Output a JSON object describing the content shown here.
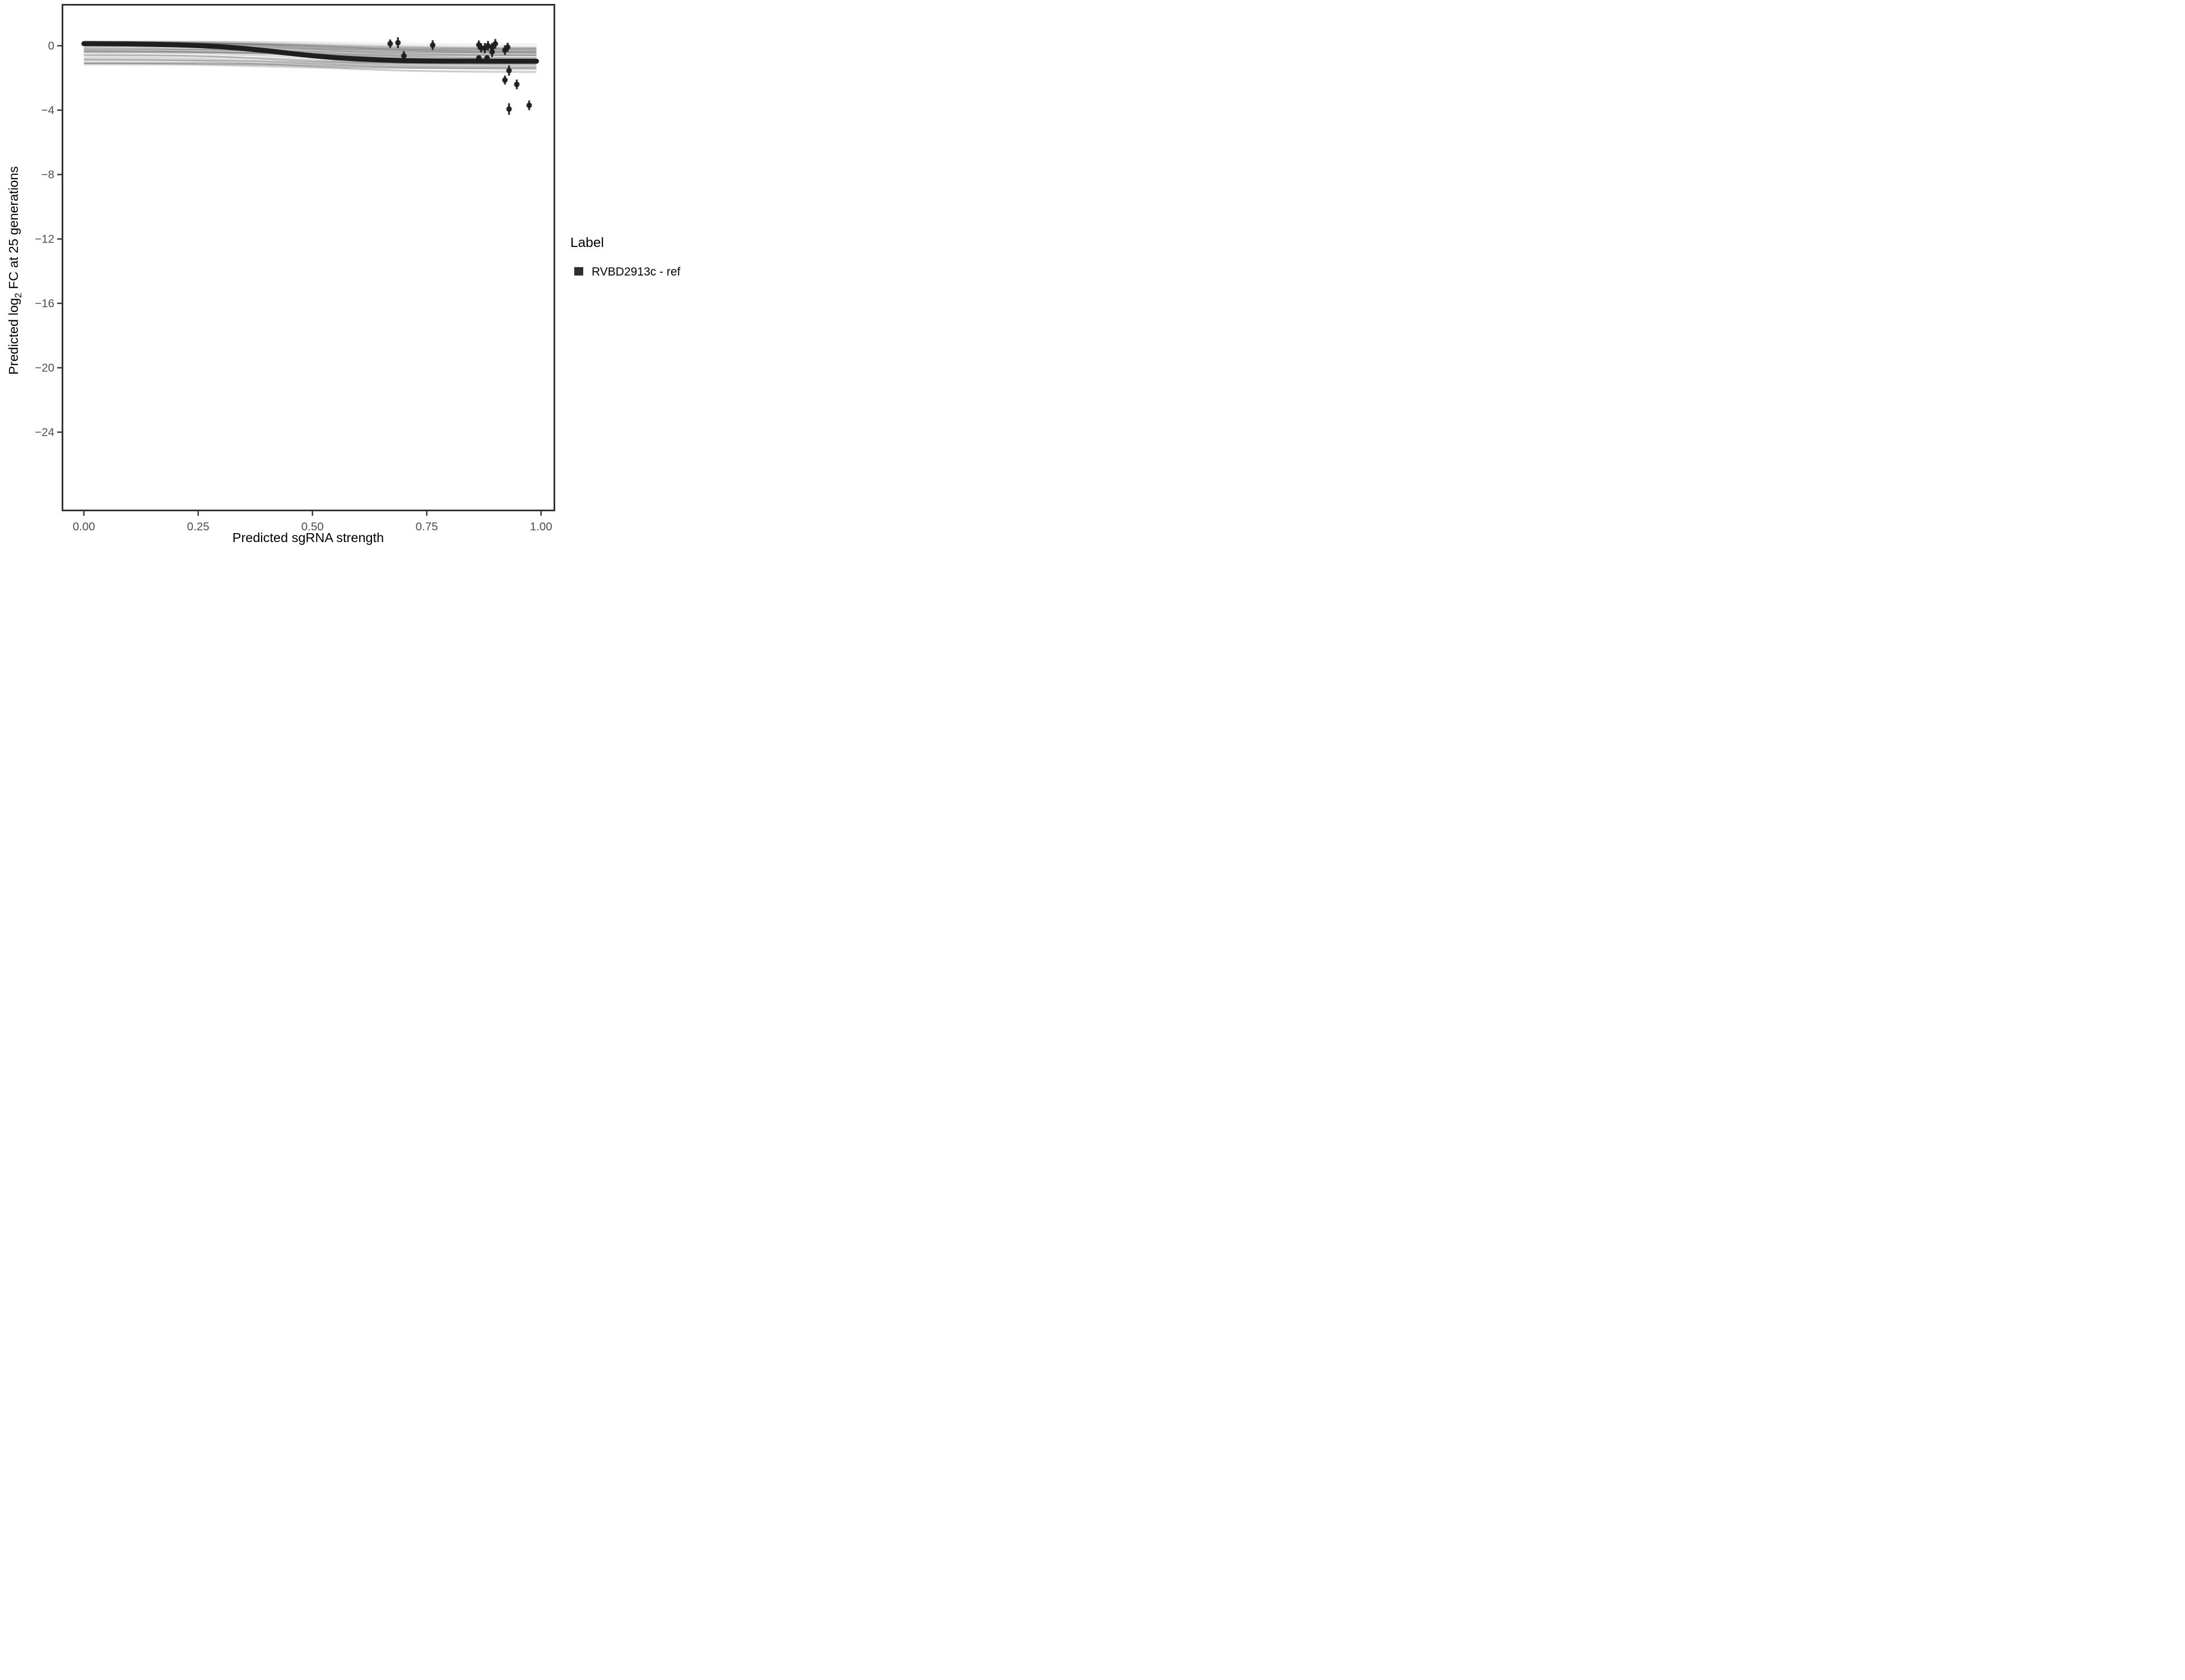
{
  "figure": {
    "x_axis": {
      "title": "Predicted sgRNA strength",
      "tick_labels": [
        "0.00",
        "0.25",
        "0.50",
        "0.75",
        "1.00"
      ],
      "tick_values": [
        0,
        0.25,
        0.5,
        0.75,
        1.0
      ]
    },
    "y_axis": {
      "title_parts": [
        "Predicted  log",
        "2",
        " FC at 25 generations"
      ],
      "tick_labels": [
        "0",
        "−4",
        "−8",
        "−12",
        "−16",
        "−20",
        "−24"
      ],
      "tick_values": [
        0,
        -4,
        -8,
        -12,
        -16,
        -20,
        -24
      ]
    },
    "legend": {
      "title": "Label",
      "items": [
        {
          "label": "RVBD2913c - ref",
          "key_color": "#2e2e2e"
        }
      ]
    },
    "colors": {
      "panel_border": "#333333",
      "tick_text": "#4d4d4d",
      "reference_line": "#1f1f1f",
      "ensemble_grey": "#5a5a5a",
      "point_color": "#1c1c1c",
      "background": "#ffffff"
    }
  },
  "chart_data": {
    "type": "line",
    "title": "",
    "xlabel": "Predicted sgRNA strength",
    "ylabel": "Predicted log2 FC at 25 generations",
    "xlim": [
      -0.047,
      1.047
    ],
    "ylim": [
      -28.9,
      2.45
    ],
    "x_ticks": [
      0,
      0.25,
      0.5,
      0.75,
      1.0
    ],
    "y_ticks": [
      0,
      -4,
      -8,
      -12,
      -16,
      -20,
      -24
    ],
    "grid": false,
    "legend_position": "right",
    "reference_line": {
      "name": "RVBD2913c - ref",
      "color": "#1f1f1f",
      "stroke_px": 9,
      "x": [
        0,
        0.05,
        0.1,
        0.15,
        0.2,
        0.25,
        0.3,
        0.35,
        0.4,
        0.45,
        0.5,
        0.55,
        0.6,
        0.65,
        0.7,
        0.75,
        0.8,
        0.85,
        0.9,
        0.95,
        0.99
      ],
      "y": [
        0.13,
        0.12,
        0.11,
        0.09,
        0.06,
        0.01,
        -0.06,
        -0.17,
        -0.31,
        -0.47,
        -0.62,
        -0.74,
        -0.82,
        -0.88,
        -0.92,
        -0.94,
        -0.95,
        -0.95,
        -0.96,
        -0.96,
        -0.96
      ]
    },
    "ensemble_band": {
      "description": "many semi-transparent grey posterior draw curves forming a band",
      "n_lines": 110,
      "seed": 7,
      "x_range": [
        0,
        0.99
      ],
      "top_at_x0": 0.28,
      "bottom_at_x0": -1.3,
      "top_at_x1": 0.14,
      "bottom_at_x1": -2.1,
      "color": "#5a5a5a"
    },
    "points": {
      "name": "observed guide fitness with error bars",
      "color": "#1c1c1c",
      "marker_radius_px": 5,
      "data": [
        {
          "x": 0.67,
          "y": 0.13,
          "lo": -0.13,
          "hi": 0.39
        },
        {
          "x": 0.687,
          "y": 0.19,
          "lo": -0.15,
          "hi": 0.53
        },
        {
          "x": 0.7,
          "y": -0.63,
          "lo": -0.93,
          "hi": -0.33
        },
        {
          "x": 0.763,
          "y": 0.04,
          "lo": -0.26,
          "hi": 0.34
        },
        {
          "x": 0.864,
          "y": 0.05,
          "lo": -0.23,
          "hi": 0.33
        },
        {
          "x": 0.869,
          "y": -0.13,
          "lo": -0.41,
          "hi": 0.15
        },
        {
          "x": 0.877,
          "y": -0.15,
          "lo": -0.47,
          "hi": 0.17
        },
        {
          "x": 0.884,
          "y": 0.0,
          "lo": -0.3,
          "hi": 0.3
        },
        {
          "x": 0.893,
          "y": -0.09,
          "lo": -0.35,
          "hi": 0.17
        },
        {
          "x": 0.893,
          "y": -0.38,
          "lo": -0.7,
          "hi": -0.06
        },
        {
          "x": 0.9,
          "y": 0.12,
          "lo": -0.18,
          "hi": 0.42
        },
        {
          "x": 0.921,
          "y": -0.27,
          "lo": -0.57,
          "hi": 0.03
        },
        {
          "x": 0.927,
          "y": -0.09,
          "lo": -0.37,
          "hi": 0.19
        },
        {
          "x": 0.864,
          "y": -0.76,
          "lo": -0.92,
          "hi": -0.6
        },
        {
          "x": 0.882,
          "y": -0.76,
          "lo": -0.92,
          "hi": -0.6
        },
        {
          "x": 0.921,
          "y": -2.13,
          "lo": -2.41,
          "hi": -1.85
        },
        {
          "x": 0.93,
          "y": -1.54,
          "lo": -1.86,
          "hi": -1.22
        },
        {
          "x": 0.947,
          "y": -2.4,
          "lo": -2.7,
          "hi": -2.1
        },
        {
          "x": 0.93,
          "y": -3.93,
          "lo": -4.29,
          "hi": -3.57
        },
        {
          "x": 0.974,
          "y": -3.7,
          "lo": -4.0,
          "hi": -3.4
        }
      ]
    }
  }
}
